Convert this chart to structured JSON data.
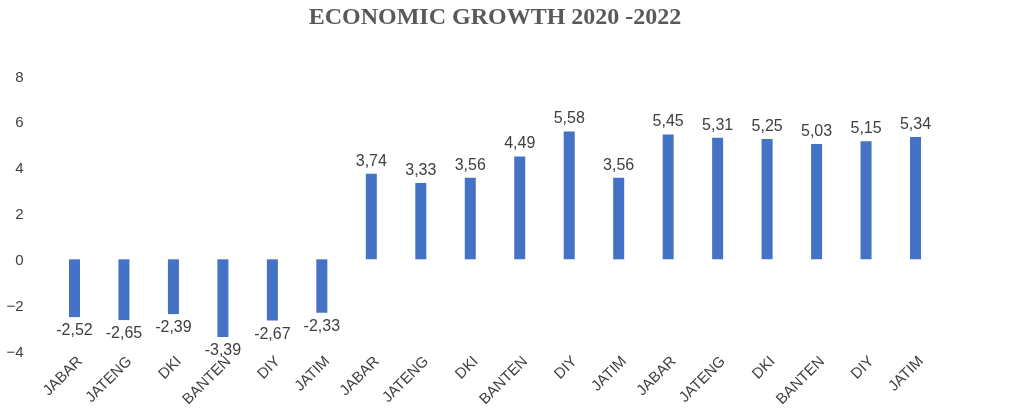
{
  "chart_data": {
    "type": "bar",
    "title": "ECONOMIC GROWTH 2020 -2022",
    "categories": [
      "JABAR",
      "JATENG",
      "DKI",
      "BANTEN",
      "DIY",
      "JATIM",
      "JABAR",
      "JATENG",
      "DKI",
      "BANTEN",
      "DIY",
      "JATIM",
      "JABAR",
      "JATENG",
      "DKI",
      "BANTEN",
      "DIY",
      "JATIM"
    ],
    "values": [
      -2.52,
      -2.65,
      -2.39,
      -3.39,
      -2.67,
      -2.33,
      3.74,
      3.33,
      3.56,
      4.49,
      5.58,
      3.56,
      5.45,
      5.31,
      5.25,
      5.03,
      5.15,
      5.34
    ],
    "value_labels": [
      "-2,52",
      "-2,65",
      "-2,39",
      "-3,39",
      "-2,67",
      "-2,33",
      "3,74",
      "3,33",
      "3,56",
      "4,49",
      "5,58",
      "3,56",
      "5,45",
      "5,31",
      "5,25",
      "5,03",
      "5,15",
      "5,34"
    ],
    "color": "#4472c4",
    "ylim": [
      -4,
      8
    ],
    "yticks": [
      -4,
      -2,
      0,
      2,
      4,
      6,
      8
    ],
    "grid": false
  }
}
